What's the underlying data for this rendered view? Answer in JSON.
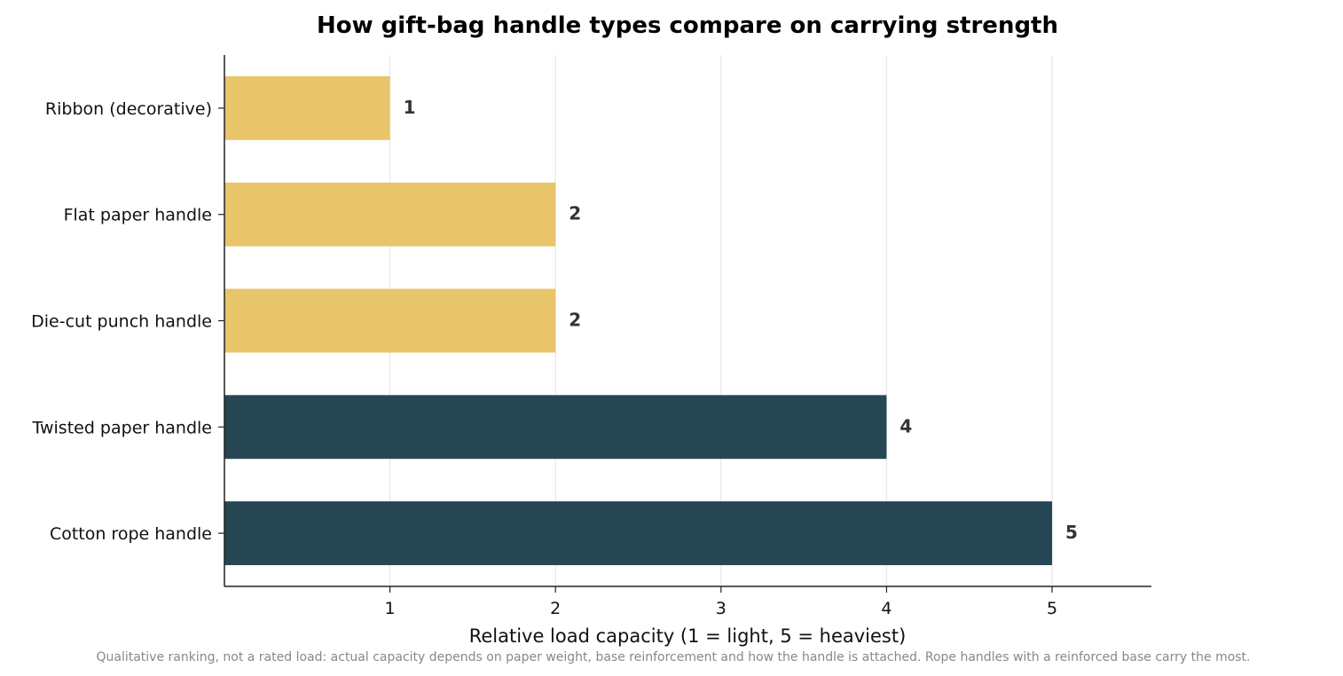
{
  "chart_data": {
    "type": "bar",
    "orientation": "horizontal",
    "title": "How gift-bag handle types compare on carrying strength",
    "xlabel": "Relative load capacity (1 = light, 5 = heaviest)",
    "ylabel": "",
    "categories": [
      "Ribbon (decorative)",
      "Flat paper handle",
      "Die-cut punch handle",
      "Twisted paper handle",
      "Cotton rope handle"
    ],
    "values": [
      1,
      2,
      2,
      4,
      5
    ],
    "data_labels": [
      "1",
      "2",
      "2",
      "4",
      "5"
    ],
    "bar_colors": [
      "#e8c46a",
      "#e8c46a",
      "#e8c46a",
      "#264653",
      "#264653"
    ],
    "xlim": [
      0,
      5.6
    ],
    "xticks": [
      1,
      2,
      3,
      4,
      5
    ],
    "xtick_labels": [
      "1",
      "2",
      "3",
      "4",
      "5"
    ],
    "grid": "vertical",
    "legend": "none",
    "footnote": "Qualitative ranking, not a rated load: actual capacity depends on paper weight, base reinforcement and how the handle is attached. Rope handles with a reinforced base carry the most."
  }
}
